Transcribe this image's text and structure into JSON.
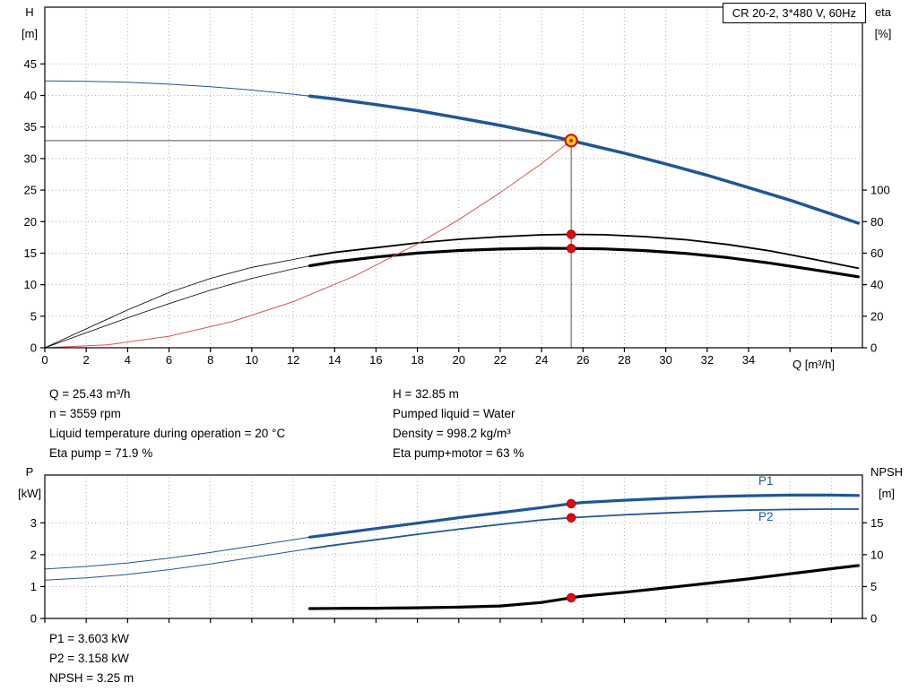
{
  "title": "CR 20-2, 3*480 V, 60Hz",
  "axis_labels": {
    "top_left": [
      "H",
      "[m]"
    ],
    "top_right": [
      "eta",
      "[%]"
    ],
    "x": "Q [m³/h]",
    "bottom_left": [
      "P",
      "[kW]"
    ],
    "bottom_right": [
      "NPSH",
      "[m]"
    ]
  },
  "curve_labels": {
    "p1": "P1",
    "p2": "P2"
  },
  "info_top_left": [
    "Q = 25.43 m³/h",
    "n = 3559 rpm",
    "Liquid temperature during operation = 20 °C",
    "Eta pump = 71.9 %"
  ],
  "info_top_right": [
    "H = 32.85 m",
    "Pumped liquid = Water",
    "Density = 998.2 kg/m³",
    "Eta pump+motor = 63 %"
  ],
  "info_bottom": [
    "P1 = 3.603 kW",
    "P2 = 3.158 kW",
    "NPSH = 3.25 m"
  ],
  "colors": {
    "curve_blue": "#1f5699",
    "marker_red": "#e30613",
    "marker_edge": "#9c0000",
    "duty_fill": "#ffd400",
    "system_red": "#e05050"
  },
  "chart_data": [
    {
      "type": "line",
      "title": "CR 20-2, 3*480 V, 60Hz",
      "xlabel": "Q [m³/h]",
      "ylabel_left": "H [m]",
      "ylabel_right": "eta [%]",
      "x_axis": {
        "min": 0,
        "max": 39.5,
        "tick_step": 2,
        "tick_label_max": 34,
        "grid_max": 38,
        "show_labels": true
      },
      "y_left": {
        "min": 0,
        "max": 54,
        "ticks": [
          0,
          5,
          10,
          15,
          20,
          25,
          30,
          35,
          40,
          45
        ]
      },
      "y_right": {
        "min": 0,
        "max": 216,
        "ticks": [
          0,
          20,
          40,
          60,
          80,
          100
        ]
      },
      "duty_point": {
        "q_m3h": 25.43,
        "h_m": 32.85,
        "eta_pump_pct": 71.9,
        "eta_pump_motor_pct": 63
      },
      "series": [
        {
          "name": "head-thin",
          "axis": "left",
          "color": "#1f5699",
          "width": 1,
          "points": [
            [
              0,
              42.3
            ],
            [
              2,
              42.25
            ],
            [
              4,
              42.1
            ],
            [
              6,
              41.8
            ],
            [
              8,
              41.4
            ],
            [
              10,
              40.85
            ],
            [
              12,
              40.2
            ],
            [
              12.8,
              39.9
            ]
          ]
        },
        {
          "name": "head",
          "axis": "left",
          "color": "#1f5699",
          "width": 3.5,
          "points": [
            [
              12.8,
              39.9
            ],
            [
              14,
              39.45
            ],
            [
              16,
              38.55
            ],
            [
              18,
              37.6
            ],
            [
              20,
              36.45
            ],
            [
              22,
              35.25
            ],
            [
              24,
              33.9
            ],
            [
              25.43,
              32.85
            ],
            [
              26,
              32.4
            ],
            [
              28,
              30.85
            ],
            [
              30,
              29.15
            ],
            [
              32,
              27.35
            ],
            [
              34,
              25.4
            ],
            [
              36,
              23.4
            ],
            [
              38,
              21.2
            ],
            [
              39.3,
              19.75
            ]
          ]
        },
        {
          "name": "eta-pump-thin",
          "axis": "right",
          "color": "#000000",
          "width": 0.8,
          "points": [
            [
              0,
              0
            ],
            [
              2,
              12
            ],
            [
              4,
              24
            ],
            [
              6,
              35
            ],
            [
              8,
              44
            ],
            [
              10,
              51
            ],
            [
              12,
              56
            ],
            [
              12.8,
              58
            ]
          ]
        },
        {
          "name": "eta-pump",
          "axis": "right",
          "color": "#000000",
          "width": 1.8,
          "points": [
            [
              12.8,
              58
            ],
            [
              14,
              60.5
            ],
            [
              16,
              63.5
            ],
            [
              18,
              66.5
            ],
            [
              20,
              68.8
            ],
            [
              22,
              70.4
            ],
            [
              24,
              71.6
            ],
            [
              25.43,
              71.9
            ],
            [
              27,
              71.7
            ],
            [
              29,
              70.5
            ],
            [
              31,
              68.5
            ],
            [
              33,
              65.5
            ],
            [
              35,
              61.5
            ],
            [
              37,
              56.5
            ],
            [
              39.3,
              50.5
            ]
          ]
        },
        {
          "name": "eta-pump-motor-thin",
          "axis": "right",
          "color": "#000000",
          "width": 0.8,
          "points": [
            [
              0,
              0
            ],
            [
              2,
              9.5
            ],
            [
              4,
              19
            ],
            [
              6,
              28
            ],
            [
              8,
              36.5
            ],
            [
              10,
              44
            ],
            [
              12,
              50
            ],
            [
              12.8,
              52
            ]
          ]
        },
        {
          "name": "eta-pump-motor",
          "axis": "right",
          "color": "#000000",
          "width": 3.2,
          "points": [
            [
              12.8,
              52
            ],
            [
              14,
              54.5
            ],
            [
              16,
              57.5
            ],
            [
              18,
              60
            ],
            [
              20,
              61.7
            ],
            [
              22,
              62.6
            ],
            [
              24,
              63.1
            ],
            [
              25.43,
              63
            ],
            [
              27,
              62.7
            ],
            [
              29,
              61.6
            ],
            [
              31,
              59.8
            ],
            [
              33,
              57.2
            ],
            [
              35,
              53.8
            ],
            [
              37,
              49.8
            ],
            [
              39.3,
              45
            ]
          ]
        },
        {
          "name": "system-curve",
          "axis": "left",
          "color": "#e05050",
          "width": 1,
          "points": [
            [
              0,
              0
            ],
            [
              3,
              0.46
            ],
            [
              6,
              1.83
            ],
            [
              9,
              4.11
            ],
            [
              12,
              7.31
            ],
            [
              15,
              11.43
            ],
            [
              18,
              16.45
            ],
            [
              20,
              20.3
            ],
            [
              22,
              24.6
            ],
            [
              24,
              29.2
            ],
            [
              25.43,
              32.85
            ]
          ]
        }
      ],
      "guides": [
        {
          "type": "h",
          "v": 32.85,
          "q1": 0,
          "q2": 25.43
        },
        {
          "type": "v",
          "q": 25.43,
          "v1": 0,
          "v2": 32.85
        }
      ],
      "markers": [
        {
          "q": 25.43,
          "v": 32.85,
          "axis": "left",
          "style": "duty",
          "name": "duty-point"
        },
        {
          "q": 25.43,
          "v": 71.9,
          "axis": "right",
          "style": "dot",
          "name": "eta-pump-point"
        },
        {
          "q": 25.43,
          "v": 63,
          "axis": "right",
          "style": "dot",
          "name": "eta-pump-motor-point"
        }
      ]
    },
    {
      "type": "line",
      "title": "",
      "xlabel": "",
      "ylabel_left": "P [kW]",
      "ylabel_right": "NPSH [m]",
      "x_axis": {
        "min": 0,
        "max": 39.5,
        "tick_step": 2,
        "tick_label_max": 34,
        "grid_max": 38,
        "show_labels": false
      },
      "y_left": {
        "min": 0,
        "max": 4.5,
        "ticks": [
          0,
          1,
          2,
          3
        ]
      },
      "y_right": {
        "min": 0,
        "max": 22.5,
        "ticks": [
          0,
          5,
          10,
          15
        ]
      },
      "duty_point": {
        "p1_kw": 3.603,
        "p2_kw": 3.158,
        "npsh_m": 3.25
      },
      "series": [
        {
          "name": "p1-thin",
          "axis": "left",
          "color": "#1f5699",
          "width": 1,
          "points": [
            [
              0,
              1.55
            ],
            [
              2,
              1.63
            ],
            [
              4,
              1.74
            ],
            [
              6,
              1.89
            ],
            [
              8,
              2.07
            ],
            [
              10,
              2.27
            ],
            [
              12,
              2.47
            ],
            [
              12.8,
              2.55
            ]
          ]
        },
        {
          "name": "p1",
          "axis": "left",
          "color": "#1f5699",
          "width": 3.2,
          "points": [
            [
              12.8,
              2.55
            ],
            [
              14,
              2.65
            ],
            [
              16,
              2.82
            ],
            [
              18,
              2.99
            ],
            [
              20,
              3.16
            ],
            [
              22,
              3.32
            ],
            [
              24,
              3.48
            ],
            [
              25.43,
              3.6
            ],
            [
              26,
              3.64
            ],
            [
              28,
              3.71
            ],
            [
              30,
              3.77
            ],
            [
              32,
              3.82
            ],
            [
              34,
              3.85
            ],
            [
              36,
              3.87
            ],
            [
              38,
              3.87
            ],
            [
              39.3,
              3.86
            ]
          ]
        },
        {
          "name": "p2-thin",
          "axis": "left",
          "color": "#1f5699",
          "width": 1,
          "points": [
            [
              0,
              1.2
            ],
            [
              2,
              1.27
            ],
            [
              4,
              1.38
            ],
            [
              6,
              1.53
            ],
            [
              8,
              1.71
            ],
            [
              10,
              1.91
            ],
            [
              12,
              2.11
            ],
            [
              12.8,
              2.19
            ]
          ]
        },
        {
          "name": "p2",
          "axis": "left",
          "color": "#1f5699",
          "width": 1.8,
          "points": [
            [
              12.8,
              2.19
            ],
            [
              14,
              2.3
            ],
            [
              16,
              2.47
            ],
            [
              18,
              2.64
            ],
            [
              20,
              2.8
            ],
            [
              22,
              2.95
            ],
            [
              24,
              3.09
            ],
            [
              25.43,
              3.16
            ],
            [
              26,
              3.18
            ],
            [
              28,
              3.25
            ],
            [
              30,
              3.31
            ],
            [
              32,
              3.36
            ],
            [
              34,
              3.4
            ],
            [
              36,
              3.42
            ],
            [
              38,
              3.43
            ],
            [
              39.3,
              3.43
            ]
          ]
        },
        {
          "name": "npsh",
          "axis": "right",
          "color": "#000000",
          "width": 3.2,
          "points": [
            [
              12.8,
              1.55
            ],
            [
              14,
              1.57
            ],
            [
              16,
              1.61
            ],
            [
              18,
              1.67
            ],
            [
              20,
              1.77
            ],
            [
              22,
              1.95
            ],
            [
              24,
              2.5
            ],
            [
              25.43,
              3.25
            ],
            [
              26,
              3.5
            ],
            [
              28,
              4.1
            ],
            [
              30,
              4.8
            ],
            [
              32,
              5.5
            ],
            [
              34,
              6.2
            ],
            [
              36,
              7.0
            ],
            [
              38,
              7.8
            ],
            [
              39.3,
              8.3
            ]
          ]
        }
      ],
      "guides": [],
      "markers": [
        {
          "q": 25.43,
          "v": 3.603,
          "axis": "left",
          "style": "dot",
          "name": "p1-point"
        },
        {
          "q": 25.43,
          "v": 3.158,
          "axis": "left",
          "style": "dot",
          "name": "p2-point"
        },
        {
          "q": 25.43,
          "v": 3.25,
          "axis": "right",
          "style": "dot",
          "name": "npsh-point"
        }
      ]
    }
  ]
}
